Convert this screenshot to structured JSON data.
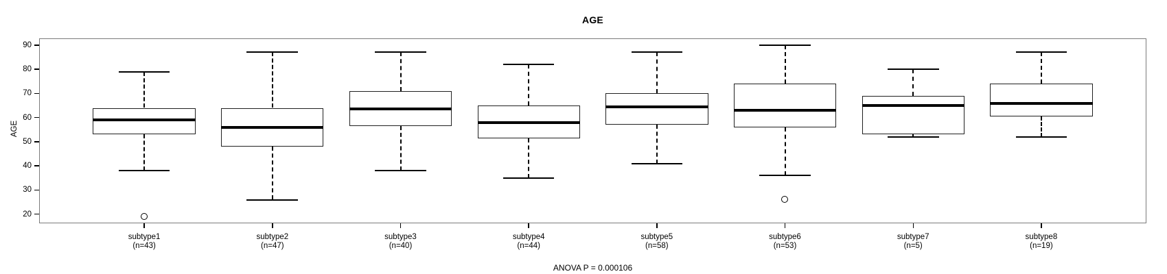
{
  "chart_data": {
    "type": "boxplot",
    "title": "AGE",
    "ylabel": "AGE",
    "xlabel": "",
    "footer": "ANOVA P = 0.000106",
    "grid": false,
    "legend": "none",
    "yticks": [
      20,
      30,
      40,
      50,
      60,
      70,
      80,
      90
    ],
    "ylim": [
      16.2,
      92.8
    ],
    "categories": [
      "subtype1",
      "subtype2",
      "subtype3",
      "subtype4",
      "subtype5",
      "subtype6",
      "subtype7",
      "subtype8"
    ],
    "boxes": [
      {
        "label": "subtype1",
        "sublabel": "(n=43)",
        "n": 43,
        "whisker_low": 38,
        "q1": 53,
        "median": 59,
        "q3": 64,
        "whisker_high": 79,
        "outliers": [
          19
        ]
      },
      {
        "label": "subtype2",
        "sublabel": "(n=47)",
        "n": 47,
        "whisker_low": 26,
        "q1": 48,
        "median": 56,
        "q3": 64,
        "whisker_high": 87,
        "outliers": []
      },
      {
        "label": "subtype3",
        "sublabel": "(n=40)",
        "n": 40,
        "whisker_low": 38,
        "q1": 56.5,
        "median": 63.5,
        "q3": 71,
        "whisker_high": 87,
        "outliers": []
      },
      {
        "label": "subtype4",
        "sublabel": "(n=44)",
        "n": 44,
        "whisker_low": 35,
        "q1": 51.5,
        "median": 58,
        "q3": 65,
        "whisker_high": 82,
        "outliers": []
      },
      {
        "label": "subtype5",
        "sublabel": "(n=58)",
        "n": 58,
        "whisker_low": 41,
        "q1": 57,
        "median": 64.5,
        "q3": 70,
        "whisker_high": 87,
        "outliers": []
      },
      {
        "label": "subtype6",
        "sublabel": "(n=53)",
        "n": 53,
        "whisker_low": 36,
        "q1": 56,
        "median": 63,
        "q3": 74,
        "whisker_high": 90,
        "outliers": [
          26
        ]
      },
      {
        "label": "subtype7",
        "sublabel": "(n=5)",
        "n": 5,
        "whisker_low": 52,
        "q1": 53,
        "median": 65,
        "q3": 69,
        "whisker_high": 80,
        "outliers": []
      },
      {
        "label": "subtype8",
        "sublabel": "(n=19)",
        "n": 19,
        "whisker_low": 52,
        "q1": 60.5,
        "median": 66,
        "q3": 74,
        "whisker_high": 87,
        "outliers": []
      }
    ]
  }
}
